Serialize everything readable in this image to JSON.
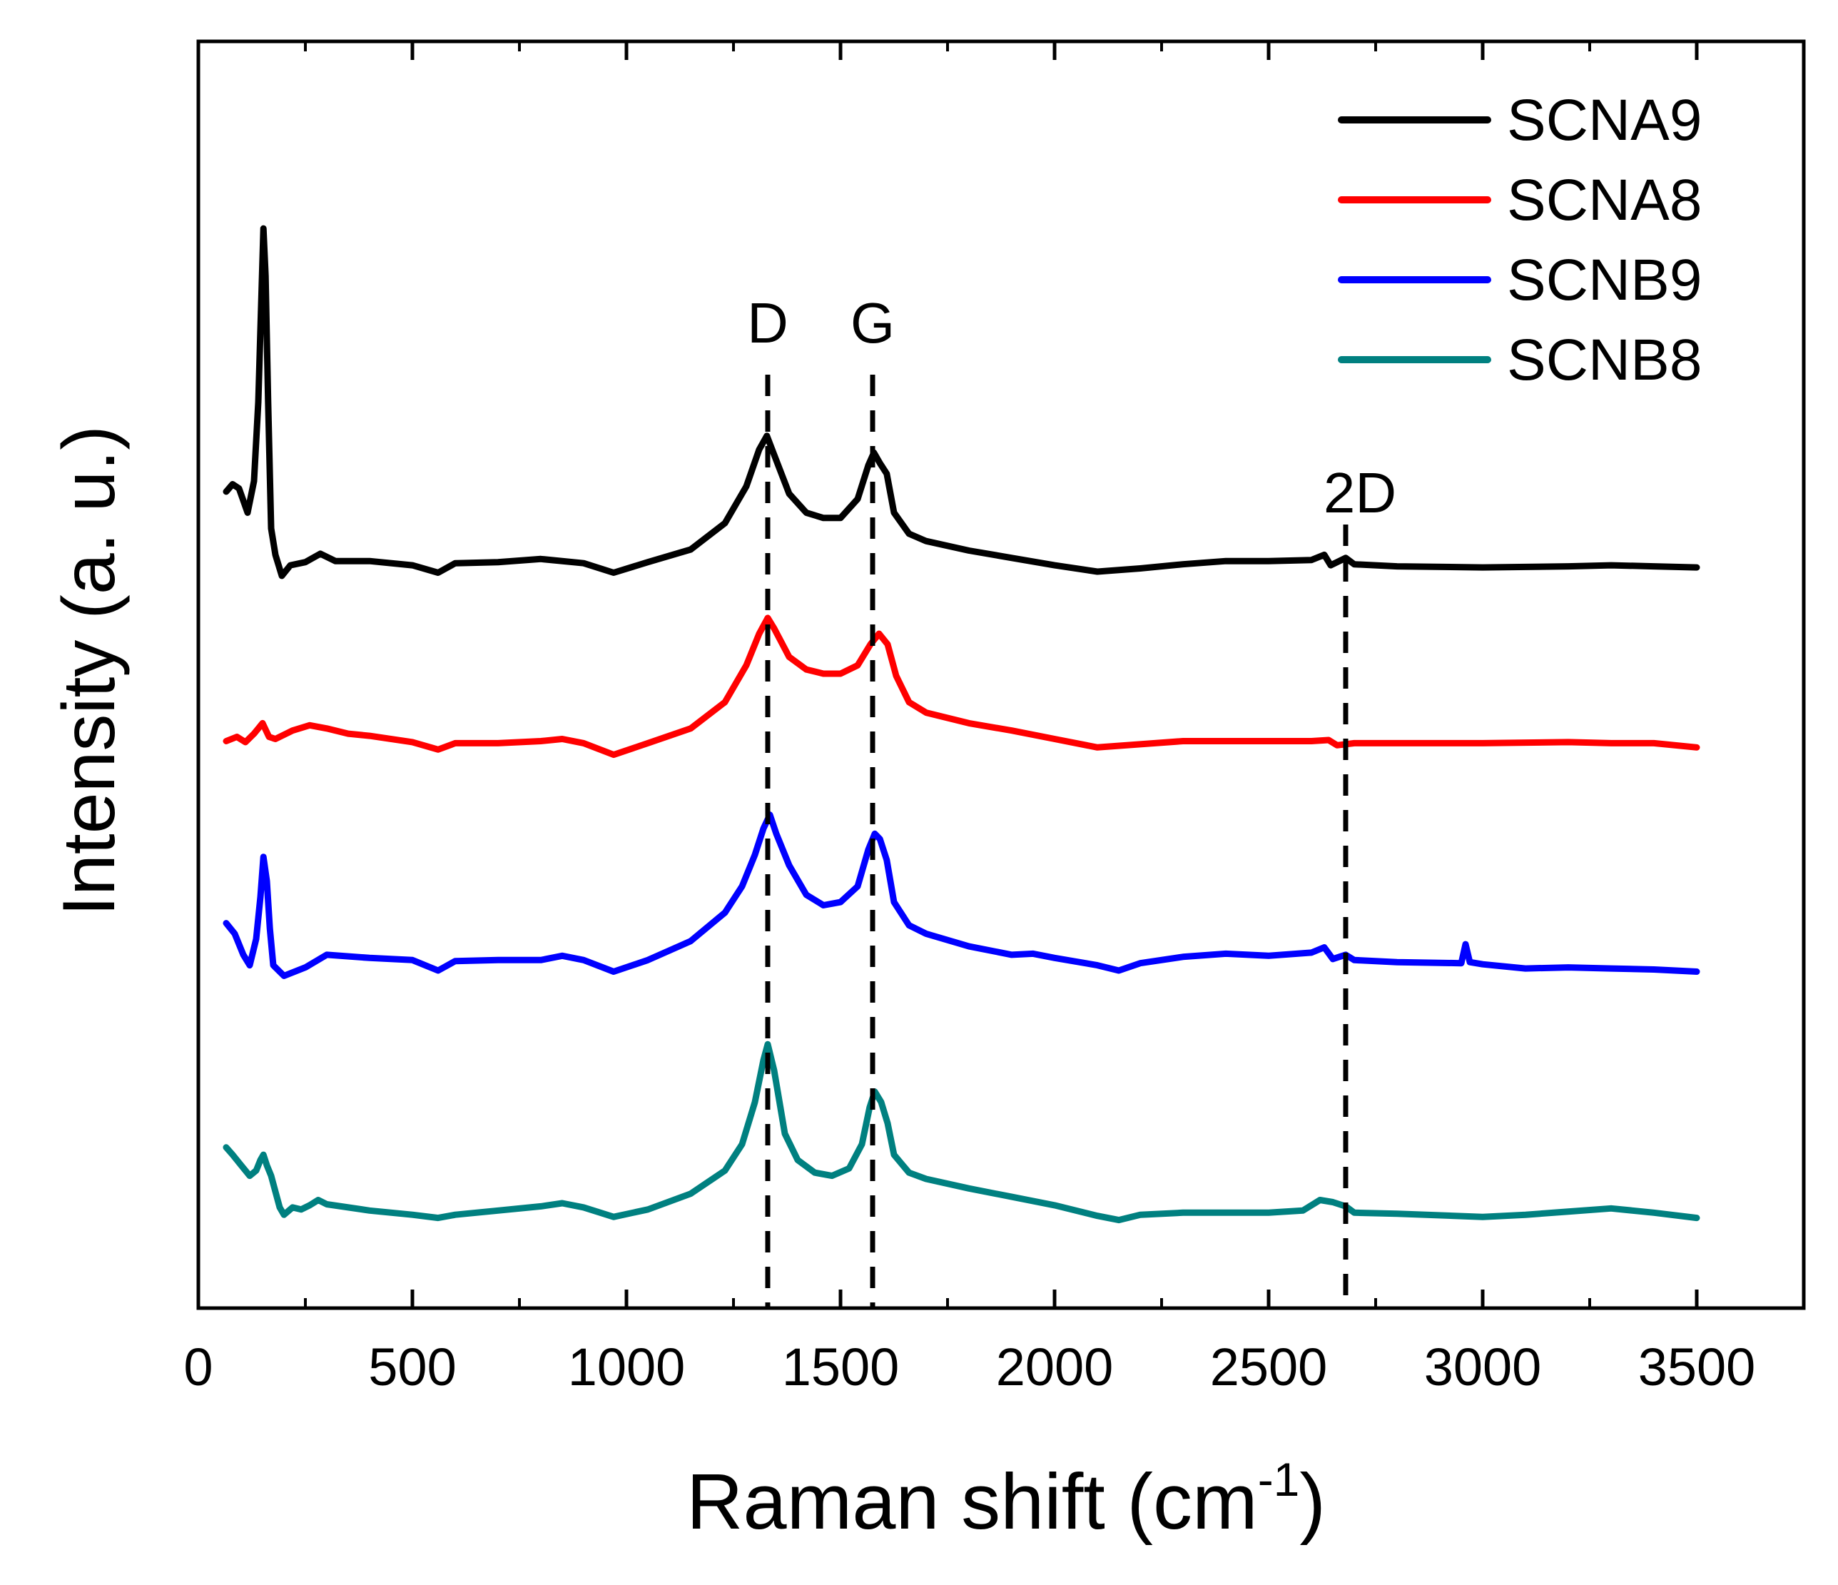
{
  "chart_data": {
    "type": "line",
    "title": "",
    "xlabel": "Raman shift (cm",
    "xlabel_superscript": "-1",
    "xlabel_suffix": ")",
    "ylabel": "Intensity (a. u.)",
    "xlim": [
      0,
      3750
    ],
    "ylim": [
      0,
      100
    ],
    "y_ticks_shown": false,
    "x_ticks": [
      0,
      500,
      1000,
      1500,
      2000,
      2500,
      3000,
      3500
    ],
    "x_tick_labels": [
      "0",
      "500",
      "1000",
      "1500",
      "2000",
      "2500",
      "3000",
      "3500"
    ],
    "grid": false,
    "legend_position": "top-right",
    "annotations": [
      {
        "label": "D",
        "x": 1330
      },
      {
        "label": "G",
        "x": 1575
      },
      {
        "label": "2D",
        "x": 2680
      }
    ],
    "series": [
      {
        "name": "SCNA9",
        "color": "#000000",
        "points": [
          [
            65,
            73.5
          ],
          [
            80,
            74.2
          ],
          [
            95,
            73.8
          ],
          [
            115,
            71.5
          ],
          [
            130,
            74.5
          ],
          [
            140,
            82.0
          ],
          [
            148,
            93.0
          ],
          [
            152,
            98.5
          ],
          [
            157,
            94.0
          ],
          [
            163,
            82.0
          ],
          [
            170,
            70.0
          ],
          [
            180,
            67.5
          ],
          [
            195,
            65.5
          ],
          [
            215,
            66.5
          ],
          [
            250,
            66.8
          ],
          [
            285,
            67.6
          ],
          [
            320,
            66.9
          ],
          [
            400,
            66.9
          ],
          [
            500,
            66.5
          ],
          [
            560,
            65.8
          ],
          [
            600,
            66.7
          ],
          [
            700,
            66.8
          ],
          [
            800,
            67.1
          ],
          [
            900,
            66.7
          ],
          [
            970,
            65.8
          ],
          [
            1050,
            66.8
          ],
          [
            1150,
            68.0
          ],
          [
            1230,
            70.5
          ],
          [
            1280,
            74.0
          ],
          [
            1310,
            77.5
          ],
          [
            1328,
            78.8
          ],
          [
            1345,
            77.0
          ],
          [
            1380,
            73.3
          ],
          [
            1420,
            71.5
          ],
          [
            1460,
            71.0
          ],
          [
            1500,
            71.0
          ],
          [
            1540,
            72.8
          ],
          [
            1565,
            76.0
          ],
          [
            1578,
            77.2
          ],
          [
            1592,
            76.2
          ],
          [
            1608,
            75.2
          ],
          [
            1625,
            71.5
          ],
          [
            1660,
            69.5
          ],
          [
            1700,
            68.8
          ],
          [
            1800,
            67.9
          ],
          [
            1900,
            67.2
          ],
          [
            2000,
            66.5
          ],
          [
            2100,
            65.9
          ],
          [
            2200,
            66.2
          ],
          [
            2300,
            66.6
          ],
          [
            2400,
            66.9
          ],
          [
            2500,
            66.9
          ],
          [
            2600,
            67.0
          ],
          [
            2630,
            67.5
          ],
          [
            2645,
            66.5
          ],
          [
            2660,
            66.8
          ],
          [
            2680,
            67.2
          ],
          [
            2700,
            66.6
          ],
          [
            2800,
            66.4
          ],
          [
            3000,
            66.3
          ],
          [
            3200,
            66.4
          ],
          [
            3300,
            66.5
          ],
          [
            3400,
            66.4
          ],
          [
            3500,
            66.3
          ]
        ]
      },
      {
        "name": "SCNA8",
        "color": "#ff0000",
        "points": [
          [
            65,
            49.8
          ],
          [
            90,
            50.2
          ],
          [
            110,
            49.7
          ],
          [
            130,
            50.5
          ],
          [
            150,
            51.5
          ],
          [
            165,
            50.2
          ],
          [
            180,
            50.0
          ],
          [
            220,
            50.8
          ],
          [
            260,
            51.3
          ],
          [
            300,
            51.0
          ],
          [
            350,
            50.5
          ],
          [
            400,
            50.3
          ],
          [
            500,
            49.7
          ],
          [
            560,
            49.0
          ],
          [
            600,
            49.6
          ],
          [
            700,
            49.6
          ],
          [
            800,
            49.8
          ],
          [
            850,
            50.0
          ],
          [
            900,
            49.6
          ],
          [
            970,
            48.5
          ],
          [
            1050,
            49.6
          ],
          [
            1150,
            51.0
          ],
          [
            1230,
            53.5
          ],
          [
            1280,
            57.0
          ],
          [
            1310,
            60.0
          ],
          [
            1330,
            61.5
          ],
          [
            1345,
            60.5
          ],
          [
            1380,
            57.8
          ],
          [
            1420,
            56.6
          ],
          [
            1460,
            56.2
          ],
          [
            1500,
            56.2
          ],
          [
            1540,
            57.0
          ],
          [
            1570,
            59.0
          ],
          [
            1590,
            60.0
          ],
          [
            1610,
            59.0
          ],
          [
            1630,
            56.0
          ],
          [
            1660,
            53.5
          ],
          [
            1700,
            52.5
          ],
          [
            1800,
            51.5
          ],
          [
            1900,
            50.8
          ],
          [
            2000,
            50.0
          ],
          [
            2100,
            49.2
          ],
          [
            2200,
            49.5
          ],
          [
            2300,
            49.8
          ],
          [
            2400,
            49.8
          ],
          [
            2500,
            49.8
          ],
          [
            2600,
            49.8
          ],
          [
            2640,
            49.9
          ],
          [
            2660,
            49.4
          ],
          [
            2700,
            49.6
          ],
          [
            2800,
            49.6
          ],
          [
            3000,
            49.6
          ],
          [
            3200,
            49.7
          ],
          [
            3300,
            49.6
          ],
          [
            3400,
            49.6
          ],
          [
            3500,
            49.2
          ]
        ]
      },
      {
        "name": "SCNB9",
        "color": "#0000ff",
        "points": [
          [
            65,
            32.5
          ],
          [
            85,
            31.5
          ],
          [
            105,
            29.5
          ],
          [
            120,
            28.5
          ],
          [
            135,
            31.0
          ],
          [
            145,
            35.0
          ],
          [
            152,
            38.8
          ],
          [
            160,
            36.5
          ],
          [
            167,
            32.0
          ],
          [
            175,
            28.5
          ],
          [
            200,
            27.5
          ],
          [
            250,
            28.3
          ],
          [
            300,
            29.5
          ],
          [
            400,
            29.2
          ],
          [
            500,
            29.0
          ],
          [
            560,
            28.0
          ],
          [
            600,
            28.9
          ],
          [
            700,
            29.0
          ],
          [
            800,
            29.0
          ],
          [
            850,
            29.4
          ],
          [
            900,
            29.0
          ],
          [
            970,
            27.9
          ],
          [
            1050,
            29.0
          ],
          [
            1150,
            30.8
          ],
          [
            1230,
            33.5
          ],
          [
            1270,
            36.0
          ],
          [
            1300,
            39.0
          ],
          [
            1320,
            41.5
          ],
          [
            1335,
            42.8
          ],
          [
            1350,
            41.0
          ],
          [
            1380,
            38.0
          ],
          [
            1420,
            35.2
          ],
          [
            1460,
            34.2
          ],
          [
            1500,
            34.5
          ],
          [
            1540,
            36.0
          ],
          [
            1565,
            39.5
          ],
          [
            1580,
            41.0
          ],
          [
            1592,
            40.5
          ],
          [
            1608,
            38.5
          ],
          [
            1625,
            34.5
          ],
          [
            1660,
            32.3
          ],
          [
            1700,
            31.5
          ],
          [
            1800,
            30.3
          ],
          [
            1900,
            29.5
          ],
          [
            1950,
            29.6
          ],
          [
            2000,
            29.2
          ],
          [
            2100,
            28.5
          ],
          [
            2150,
            28.0
          ],
          [
            2200,
            28.7
          ],
          [
            2300,
            29.3
          ],
          [
            2400,
            29.6
          ],
          [
            2500,
            29.4
          ],
          [
            2600,
            29.7
          ],
          [
            2630,
            30.2
          ],
          [
            2650,
            29.1
          ],
          [
            2680,
            29.5
          ],
          [
            2700,
            29.0
          ],
          [
            2800,
            28.8
          ],
          [
            2950,
            28.7
          ],
          [
            2960,
            30.5
          ],
          [
            2970,
            28.8
          ],
          [
            3000,
            28.6
          ],
          [
            3100,
            28.2
          ],
          [
            3200,
            28.3
          ],
          [
            3300,
            28.2
          ],
          [
            3400,
            28.1
          ],
          [
            3500,
            27.9
          ]
        ]
      },
      {
        "name": "SCNB8",
        "color": "#008080",
        "points": [
          [
            65,
            11.2
          ],
          [
            80,
            10.5
          ],
          [
            100,
            9.5
          ],
          [
            120,
            8.5
          ],
          [
            135,
            9.0
          ],
          [
            145,
            10.0
          ],
          [
            152,
            10.5
          ],
          [
            160,
            9.5
          ],
          [
            170,
            8.5
          ],
          [
            190,
            5.5
          ],
          [
            200,
            4.8
          ],
          [
            220,
            5.5
          ],
          [
            240,
            5.3
          ],
          [
            260,
            5.7
          ],
          [
            280,
            6.2
          ],
          [
            300,
            5.8
          ],
          [
            400,
            5.2
          ],
          [
            500,
            4.8
          ],
          [
            560,
            4.5
          ],
          [
            600,
            4.8
          ],
          [
            700,
            5.2
          ],
          [
            800,
            5.6
          ],
          [
            850,
            5.9
          ],
          [
            900,
            5.5
          ],
          [
            970,
            4.6
          ],
          [
            1050,
            5.3
          ],
          [
            1150,
            6.8
          ],
          [
            1230,
            9.0
          ],
          [
            1270,
            11.5
          ],
          [
            1300,
            15.5
          ],
          [
            1320,
            19.5
          ],
          [
            1330,
            21.0
          ],
          [
            1345,
            18.5
          ],
          [
            1370,
            12.5
          ],
          [
            1400,
            10.0
          ],
          [
            1440,
            8.8
          ],
          [
            1480,
            8.5
          ],
          [
            1520,
            9.2
          ],
          [
            1550,
            11.5
          ],
          [
            1568,
            15.0
          ],
          [
            1580,
            16.5
          ],
          [
            1595,
            15.5
          ],
          [
            1610,
            13.5
          ],
          [
            1625,
            10.5
          ],
          [
            1660,
            8.8
          ],
          [
            1700,
            8.2
          ],
          [
            1800,
            7.3
          ],
          [
            1900,
            6.5
          ],
          [
            2000,
            5.7
          ],
          [
            2100,
            4.7
          ],
          [
            2150,
            4.3
          ],
          [
            2200,
            4.8
          ],
          [
            2300,
            5.0
          ],
          [
            2400,
            5.0
          ],
          [
            2500,
            5.0
          ],
          [
            2580,
            5.2
          ],
          [
            2620,
            6.2
          ],
          [
            2650,
            6.0
          ],
          [
            2680,
            5.6
          ],
          [
            2700,
            5.0
          ],
          [
            2800,
            4.9
          ],
          [
            3000,
            4.6
          ],
          [
            3100,
            4.8
          ],
          [
            3200,
            5.1
          ],
          [
            3300,
            5.4
          ],
          [
            3400,
            5.0
          ],
          [
            3500,
            4.5
          ]
        ]
      }
    ]
  }
}
